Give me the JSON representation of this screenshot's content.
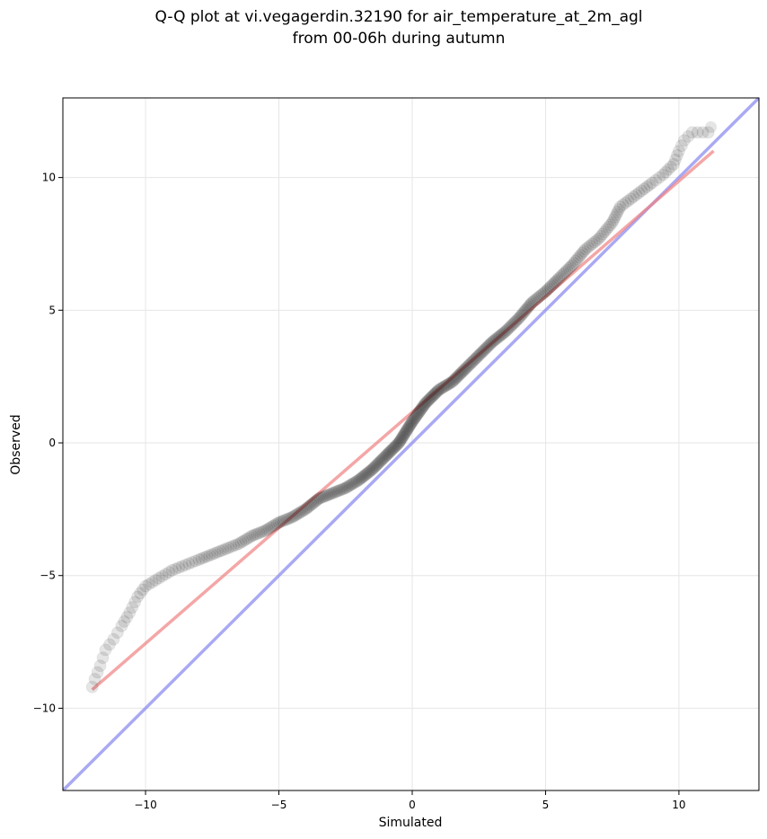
{
  "chart_data": {
    "type": "scatter",
    "title": "Q-Q plot at vi.vegagerdin.32190 for air_temperature_at_2m_agl",
    "subtitle": "from 00-06h during autumn",
    "xlabel": "Simulated",
    "ylabel": "Observed",
    "xlim": [
      -13.1,
      13.0
    ],
    "ylim": [
      -13.1,
      13.0
    ],
    "xticks": [
      -10,
      -5,
      0,
      5,
      10
    ],
    "yticks": [
      -10,
      -5,
      0,
      5,
      10
    ],
    "xtick_labels": [
      "−10",
      "−5",
      "0",
      "5",
      "10"
    ],
    "ytick_labels": [
      "−10",
      "−5",
      "0",
      "5",
      "10"
    ],
    "grid": true,
    "colors": {
      "points": "#000000",
      "fit_line": "#f08080",
      "identity_line": "#8c8cf0",
      "grid": "#e6e6e6"
    },
    "quantile_curve": [
      [
        -12.0,
        -9.2
      ],
      [
        -11.9,
        -8.9
      ],
      [
        -11.7,
        -8.4
      ],
      [
        -11.5,
        -7.8
      ],
      [
        -11.2,
        -7.4
      ],
      [
        -10.9,
        -6.9
      ],
      [
        -10.6,
        -6.4
      ],
      [
        -10.3,
        -5.8
      ],
      [
        -10.0,
        -5.4
      ],
      [
        -9.5,
        -5.1
      ],
      [
        -9.0,
        -4.8
      ],
      [
        -8.5,
        -4.6
      ],
      [
        -8.0,
        -4.4
      ],
      [
        -7.5,
        -4.2
      ],
      [
        -7.0,
        -4.0
      ],
      [
        -6.5,
        -3.8
      ],
      [
        -6.0,
        -3.5
      ],
      [
        -5.5,
        -3.3
      ],
      [
        -5.0,
        -3.0
      ],
      [
        -4.5,
        -2.8
      ],
      [
        -4.0,
        -2.5
      ],
      [
        -3.5,
        -2.1
      ],
      [
        -3.0,
        -1.9
      ],
      [
        -2.5,
        -1.7
      ],
      [
        -2.0,
        -1.4
      ],
      [
        -1.5,
        -1.0
      ],
      [
        -1.0,
        -0.5
      ],
      [
        -0.5,
        0.0
      ],
      [
        0.0,
        0.8
      ],
      [
        0.5,
        1.5
      ],
      [
        1.0,
        2.0
      ],
      [
        1.5,
        2.3
      ],
      [
        2.0,
        2.8
      ],
      [
        2.5,
        3.3
      ],
      [
        3.0,
        3.8
      ],
      [
        3.5,
        4.2
      ],
      [
        4.0,
        4.7
      ],
      [
        4.5,
        5.3
      ],
      [
        5.0,
        5.7
      ],
      [
        5.5,
        6.2
      ],
      [
        6.0,
        6.7
      ],
      [
        6.5,
        7.3
      ],
      [
        7.0,
        7.7
      ],
      [
        7.5,
        8.3
      ],
      [
        7.8,
        8.9
      ],
      [
        8.2,
        9.2
      ],
      [
        8.6,
        9.5
      ],
      [
        9.0,
        9.8
      ],
      [
        9.4,
        10.1
      ],
      [
        9.8,
        10.5
      ],
      [
        10.0,
        11.0
      ],
      [
        10.2,
        11.4
      ],
      [
        10.5,
        11.7
      ],
      [
        11.1,
        11.7
      ],
      [
        11.2,
        11.9
      ]
    ],
    "fit_line": {
      "x": [
        -12.0,
        11.3
      ],
      "y": [
        -9.3,
        11.0
      ]
    },
    "identity_line": {
      "x": [
        -13.1,
        13.0
      ],
      "y": [
        -13.1,
        13.0
      ]
    }
  }
}
